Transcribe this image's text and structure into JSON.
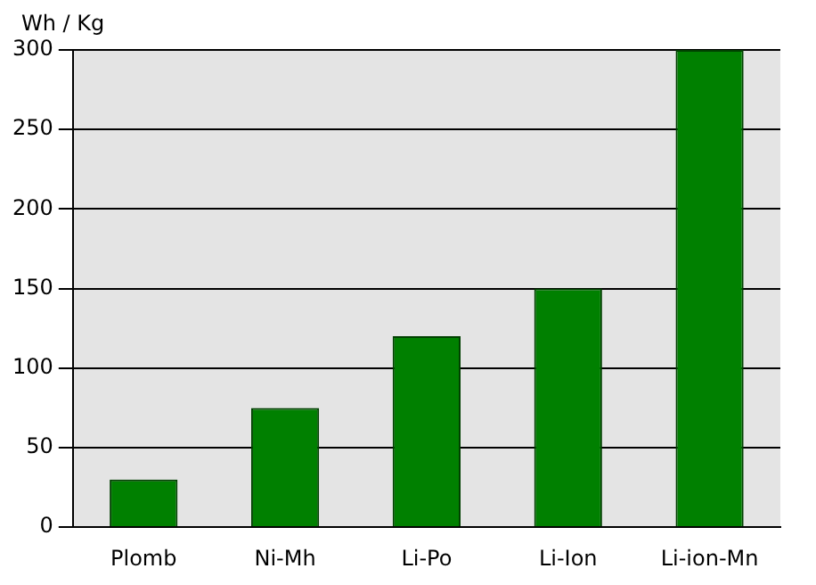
{
  "chart_data": {
    "type": "bar",
    "ylabel": "Wh / Kg",
    "categories": [
      "Plomb",
      "Ni-Mh",
      "Li-Po",
      "Li-Ion",
      "Li-ion-Mn"
    ],
    "values": [
      30,
      75,
      120,
      150,
      300
    ],
    "color": "#008000",
    "ylim": [
      0,
      300
    ],
    "yticks": [
      0,
      50,
      100,
      150,
      200,
      250,
      300
    ],
    "grid": "y",
    "legend": false
  }
}
